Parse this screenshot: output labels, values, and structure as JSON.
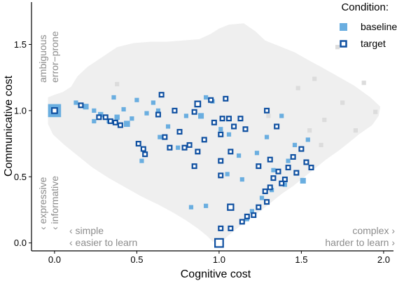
{
  "chart_data": {
    "type": "scatter",
    "xlabel": "Cognitive cost",
    "ylabel": "Communicative cost",
    "xlim": [
      -0.14,
      2.06
    ],
    "ylim": [
      -0.06,
      1.82
    ],
    "x_ticks": [
      {
        "value": 0.0,
        "label": "0.0"
      },
      {
        "value": 0.5,
        "label": "0.5"
      },
      {
        "value": 1.0,
        "label": "1.0"
      },
      {
        "value": 1.5,
        "label": "1.5"
      },
      {
        "value": 2.0,
        "label": "2.0"
      }
    ],
    "y_ticks": [
      {
        "value": 0.0,
        "label": "0.0"
      },
      {
        "value": 0.5,
        "label": "0.5"
      },
      {
        "value": 1.0,
        "label": "1.0"
      },
      {
        "value": 1.5,
        "label": "1.5"
      }
    ],
    "grid": false,
    "legend": {
      "title": "Condition:",
      "placement": "top-right",
      "entries": [
        {
          "label": "baseline",
          "style": "filled-square",
          "color": "#6aaee0"
        },
        {
          "label": "target",
          "style": "open-square",
          "color": "#0e4fa0"
        }
      ]
    },
    "annotations": {
      "top_left": [
        "ambiguous",
        "error−prone"
      ],
      "mid_left": [
        "‹ expressive",
        "‹ informative"
      ],
      "bottom_left": [
        "‹ simple",
        "‹ easier to learn"
      ],
      "bottom_right": [
        "complex ›",
        "harder to learn ›"
      ]
    },
    "colors": {
      "background_region": "#efefef",
      "background_points": "#dcdcdc",
      "baseline": "#6aaee0",
      "target": "#0e4fa0"
    },
    "feasible_region": [
      [
        -0.04,
        1.1
      ],
      [
        0.0,
        1.12
      ],
      [
        0.05,
        1.14
      ],
      [
        0.1,
        1.18
      ],
      [
        0.14,
        1.26
      ],
      [
        0.2,
        1.33
      ],
      [
        0.26,
        1.38
      ],
      [
        0.32,
        1.43
      ],
      [
        0.38,
        1.48
      ],
      [
        0.48,
        1.51
      ],
      [
        0.58,
        1.52
      ],
      [
        0.68,
        1.52
      ],
      [
        0.78,
        1.53
      ],
      [
        0.88,
        1.54
      ],
      [
        0.95,
        1.58
      ],
      [
        1.0,
        1.62
      ],
      [
        1.06,
        1.65
      ],
      [
        1.15,
        1.66
      ],
      [
        1.22,
        1.6
      ],
      [
        1.28,
        1.53
      ],
      [
        1.36,
        1.49
      ],
      [
        1.46,
        1.44
      ],
      [
        1.56,
        1.37
      ],
      [
        1.62,
        1.33
      ],
      [
        1.72,
        1.26
      ],
      [
        1.82,
        1.19
      ],
      [
        1.92,
        1.1
      ],
      [
        1.98,
        1.03
      ],
      [
        1.97,
        0.96
      ],
      [
        1.93,
        0.89
      ],
      [
        1.85,
        0.82
      ],
      [
        1.79,
        0.76
      ],
      [
        1.73,
        0.7
      ],
      [
        1.65,
        0.63
      ],
      [
        1.58,
        0.56
      ],
      [
        1.52,
        0.5
      ],
      [
        1.45,
        0.43
      ],
      [
        1.38,
        0.37
      ],
      [
        1.32,
        0.31
      ],
      [
        1.25,
        0.24
      ],
      [
        1.18,
        0.18
      ],
      [
        1.11,
        0.11
      ],
      [
        1.05,
        0.05
      ],
      [
        1.02,
        0.01
      ],
      [
        0.96,
        0.01
      ],
      [
        0.93,
        0.05
      ],
      [
        0.87,
        0.11
      ],
      [
        0.8,
        0.17
      ],
      [
        0.72,
        0.23
      ],
      [
        0.63,
        0.29
      ],
      [
        0.53,
        0.35
      ],
      [
        0.43,
        0.42
      ],
      [
        0.33,
        0.49
      ],
      [
        0.23,
        0.57
      ],
      [
        0.14,
        0.66
      ],
      [
        0.06,
        0.74
      ],
      [
        -0.01,
        0.82
      ],
      [
        -0.04,
        0.9
      ]
    ],
    "series": [
      {
        "name": "baseline",
        "points": [
          {
            "x": 0.0,
            "y": 1.0,
            "size": 3.0
          },
          {
            "x": 0.19,
            "y": 1.03,
            "size": 1.3
          },
          {
            "x": 0.24,
            "y": 1.0
          },
          {
            "x": 0.28,
            "y": 0.97,
            "size": 1.2
          },
          {
            "x": 0.33,
            "y": 0.92
          },
          {
            "x": 0.38,
            "y": 0.95,
            "size": 1.2
          },
          {
            "x": 0.42,
            "y": 1.01
          },
          {
            "x": 0.44,
            "y": 0.9,
            "size": 1.4
          },
          {
            "x": 0.47,
            "y": 0.94
          },
          {
            "x": 0.5,
            "y": 1.08
          },
          {
            "x": 0.56,
            "y": 0.98
          },
          {
            "x": 0.6,
            "y": 1.06
          },
          {
            "x": 0.24,
            "y": 0.92
          },
          {
            "x": 0.13,
            "y": 1.06
          },
          {
            "x": 0.36,
            "y": 1.1
          },
          {
            "x": 0.63,
            "y": 1.0
          },
          {
            "x": 0.53,
            "y": 0.62
          },
          {
            "x": 0.64,
            "y": 0.8
          },
          {
            "x": 0.69,
            "y": 0.88
          },
          {
            "x": 0.75,
            "y": 0.72
          },
          {
            "x": 0.8,
            "y": 0.96
          },
          {
            "x": 0.89,
            "y": 0.96,
            "size": 1.3
          },
          {
            "x": 0.92,
            "y": 1.1
          },
          {
            "x": 0.96,
            "y": 1.07
          },
          {
            "x": 1.01,
            "y": 0.86
          },
          {
            "x": 1.06,
            "y": 0.82
          },
          {
            "x": 1.05,
            "y": 0.52
          },
          {
            "x": 1.12,
            "y": 0.66
          },
          {
            "x": 1.14,
            "y": 0.48
          },
          {
            "x": 1.23,
            "y": 0.68
          },
          {
            "x": 1.29,
            "y": 0.8
          },
          {
            "x": 1.33,
            "y": 0.55
          },
          {
            "x": 1.38,
            "y": 0.96
          },
          {
            "x": 1.42,
            "y": 0.62
          },
          {
            "x": 1.46,
            "y": 0.74
          },
          {
            "x": 1.51,
            "y": 0.47,
            "size": 1.3
          },
          {
            "x": 1.54,
            "y": 0.78
          },
          {
            "x": 1.17,
            "y": 0.18
          },
          {
            "x": 1.2,
            "y": 0.24
          },
          {
            "x": 0.83,
            "y": 0.27
          },
          {
            "x": 0.92,
            "y": 0.28
          },
          {
            "x": 1.26,
            "y": 0.34
          },
          {
            "x": 1.32,
            "y": 0.4
          },
          {
            "x": 1.4,
            "y": 0.44
          },
          {
            "x": 1.0,
            "y": 0.0,
            "size": 2.0
          }
        ]
      },
      {
        "name": "target",
        "points": [
          {
            "x": 0.0,
            "y": 1.0,
            "size": 1.3
          },
          {
            "x": 0.16,
            "y": 1.04
          },
          {
            "x": 0.27,
            "y": 0.95
          },
          {
            "x": 0.31,
            "y": 0.95
          },
          {
            "x": 0.34,
            "y": 0.92
          },
          {
            "x": 0.37,
            "y": 0.91
          },
          {
            "x": 0.4,
            "y": 0.89
          },
          {
            "x": 0.51,
            "y": 0.75
          },
          {
            "x": 0.54,
            "y": 0.71
          },
          {
            "x": 0.55,
            "y": 0.67
          },
          {
            "x": 0.63,
            "y": 0.97
          },
          {
            "x": 0.65,
            "y": 1.12
          },
          {
            "x": 0.67,
            "y": 0.8
          },
          {
            "x": 0.7,
            "y": 0.72
          },
          {
            "x": 0.73,
            "y": 1.0
          },
          {
            "x": 0.76,
            "y": 0.84
          },
          {
            "x": 0.79,
            "y": 0.72
          },
          {
            "x": 0.82,
            "y": 0.74
          },
          {
            "x": 0.85,
            "y": 0.99
          },
          {
            "x": 0.87,
            "y": 1.05,
            "size": 1.3
          },
          {
            "x": 0.87,
            "y": 0.69
          },
          {
            "x": 0.91,
            "y": 0.78
          },
          {
            "x": 0.95,
            "y": 1.08
          },
          {
            "x": 0.97,
            "y": 0.91
          },
          {
            "x": 1.02,
            "y": 0.94
          },
          {
            "x": 1.01,
            "y": 0.82
          },
          {
            "x": 1.04,
            "y": 1.09
          },
          {
            "x": 1.06,
            "y": 0.94
          },
          {
            "x": 1.07,
            "y": 0.69
          },
          {
            "x": 0.85,
            "y": 0.58
          },
          {
            "x": 1.01,
            "y": 0.62
          },
          {
            "x": 1.01,
            "y": 0.51
          },
          {
            "x": 1.09,
            "y": 0.88
          },
          {
            "x": 1.13,
            "y": 0.94
          },
          {
            "x": 1.16,
            "y": 0.86
          },
          {
            "x": 1.29,
            "y": 1.0
          },
          {
            "x": 1.35,
            "y": 0.88
          },
          {
            "x": 1.31,
            "y": 0.63
          },
          {
            "x": 1.24,
            "y": 0.58
          },
          {
            "x": 1.33,
            "y": 0.49
          },
          {
            "x": 1.36,
            "y": 0.54
          },
          {
            "x": 1.42,
            "y": 0.57
          },
          {
            "x": 1.45,
            "y": 0.65
          },
          {
            "x": 1.47,
            "y": 0.53
          },
          {
            "x": 1.5,
            "y": 0.71
          },
          {
            "x": 1.53,
            "y": 0.61
          },
          {
            "x": 1.56,
            "y": 0.57
          },
          {
            "x": 1.4,
            "y": 0.48
          },
          {
            "x": 1.38,
            "y": 0.45
          },
          {
            "x": 1.31,
            "y": 0.42
          },
          {
            "x": 1.28,
            "y": 0.39
          },
          {
            "x": 1.29,
            "y": 0.31
          },
          {
            "x": 1.24,
            "y": 0.27
          },
          {
            "x": 1.21,
            "y": 0.21
          },
          {
            "x": 1.17,
            "y": 0.2
          },
          {
            "x": 1.14,
            "y": 0.16
          },
          {
            "x": 1.07,
            "y": 0.11
          },
          {
            "x": 1.01,
            "y": 0.11
          },
          {
            "x": 1.07,
            "y": 0.27,
            "size": 1.4
          },
          {
            "x": 1.0,
            "y": 0.0,
            "size": 2.0
          }
        ]
      },
      {
        "name": "background",
        "points": [
          {
            "x": 1.72,
            "y": 1.48
          },
          {
            "x": 1.3,
            "y": 0.96
          },
          {
            "x": 1.55,
            "y": 0.85
          },
          {
            "x": 1.64,
            "y": 0.93
          },
          {
            "x": 1.83,
            "y": 0.85
          },
          {
            "x": 1.95,
            "y": 0.99
          },
          {
            "x": 1.48,
            "y": 1.17
          },
          {
            "x": 1.58,
            "y": 1.24
          },
          {
            "x": 1.75,
            "y": 1.06
          },
          {
            "x": 0.38,
            "y": 1.2
          },
          {
            "x": 1.62,
            "y": 0.74
          },
          {
            "x": 1.88,
            "y": 1.21
          }
        ]
      }
    ]
  }
}
